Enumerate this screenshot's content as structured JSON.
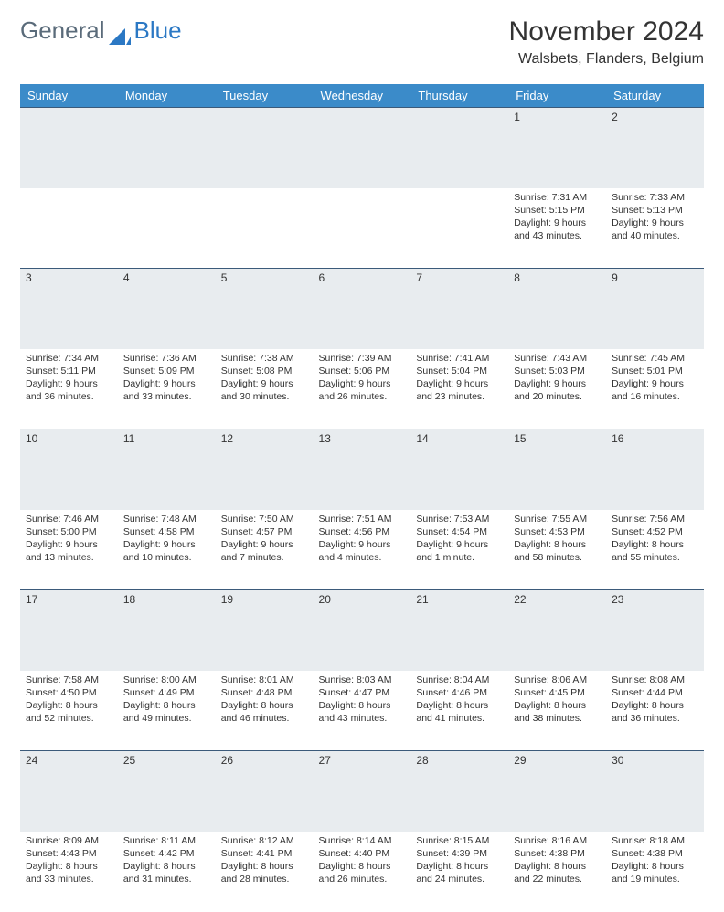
{
  "logo": {
    "text1": "General",
    "text2": "Blue"
  },
  "title": "November 2024",
  "location": "Walsbets, Flanders, Belgium",
  "colors": {
    "header_bg": "#3b8bc9",
    "header_text": "#ffffff",
    "daynum_bg": "#e8ecef",
    "border": "#3b5a7a",
    "logo_gray": "#5a6b7a",
    "logo_blue": "#2b78c4"
  },
  "weekdays": [
    "Sunday",
    "Monday",
    "Tuesday",
    "Wednesday",
    "Thursday",
    "Friday",
    "Saturday"
  ],
  "weeks": [
    [
      null,
      null,
      null,
      null,
      null,
      {
        "n": "1",
        "sr": "7:31 AM",
        "ss": "5:15 PM",
        "dl": "9 hours and 43 minutes."
      },
      {
        "n": "2",
        "sr": "7:33 AM",
        "ss": "5:13 PM",
        "dl": "9 hours and 40 minutes."
      }
    ],
    [
      {
        "n": "3",
        "sr": "7:34 AM",
        "ss": "5:11 PM",
        "dl": "9 hours and 36 minutes."
      },
      {
        "n": "4",
        "sr": "7:36 AM",
        "ss": "5:09 PM",
        "dl": "9 hours and 33 minutes."
      },
      {
        "n": "5",
        "sr": "7:38 AM",
        "ss": "5:08 PM",
        "dl": "9 hours and 30 minutes."
      },
      {
        "n": "6",
        "sr": "7:39 AM",
        "ss": "5:06 PM",
        "dl": "9 hours and 26 minutes."
      },
      {
        "n": "7",
        "sr": "7:41 AM",
        "ss": "5:04 PM",
        "dl": "9 hours and 23 minutes."
      },
      {
        "n": "8",
        "sr": "7:43 AM",
        "ss": "5:03 PM",
        "dl": "9 hours and 20 minutes."
      },
      {
        "n": "9",
        "sr": "7:45 AM",
        "ss": "5:01 PM",
        "dl": "9 hours and 16 minutes."
      }
    ],
    [
      {
        "n": "10",
        "sr": "7:46 AM",
        "ss": "5:00 PM",
        "dl": "9 hours and 13 minutes."
      },
      {
        "n": "11",
        "sr": "7:48 AM",
        "ss": "4:58 PM",
        "dl": "9 hours and 10 minutes."
      },
      {
        "n": "12",
        "sr": "7:50 AM",
        "ss": "4:57 PM",
        "dl": "9 hours and 7 minutes."
      },
      {
        "n": "13",
        "sr": "7:51 AM",
        "ss": "4:56 PM",
        "dl": "9 hours and 4 minutes."
      },
      {
        "n": "14",
        "sr": "7:53 AM",
        "ss": "4:54 PM",
        "dl": "9 hours and 1 minute."
      },
      {
        "n": "15",
        "sr": "7:55 AM",
        "ss": "4:53 PM",
        "dl": "8 hours and 58 minutes."
      },
      {
        "n": "16",
        "sr": "7:56 AM",
        "ss": "4:52 PM",
        "dl": "8 hours and 55 minutes."
      }
    ],
    [
      {
        "n": "17",
        "sr": "7:58 AM",
        "ss": "4:50 PM",
        "dl": "8 hours and 52 minutes."
      },
      {
        "n": "18",
        "sr": "8:00 AM",
        "ss": "4:49 PM",
        "dl": "8 hours and 49 minutes."
      },
      {
        "n": "19",
        "sr": "8:01 AM",
        "ss": "4:48 PM",
        "dl": "8 hours and 46 minutes."
      },
      {
        "n": "20",
        "sr": "8:03 AM",
        "ss": "4:47 PM",
        "dl": "8 hours and 43 minutes."
      },
      {
        "n": "21",
        "sr": "8:04 AM",
        "ss": "4:46 PM",
        "dl": "8 hours and 41 minutes."
      },
      {
        "n": "22",
        "sr": "8:06 AM",
        "ss": "4:45 PM",
        "dl": "8 hours and 38 minutes."
      },
      {
        "n": "23",
        "sr": "8:08 AM",
        "ss": "4:44 PM",
        "dl": "8 hours and 36 minutes."
      }
    ],
    [
      {
        "n": "24",
        "sr": "8:09 AM",
        "ss": "4:43 PM",
        "dl": "8 hours and 33 minutes."
      },
      {
        "n": "25",
        "sr": "8:11 AM",
        "ss": "4:42 PM",
        "dl": "8 hours and 31 minutes."
      },
      {
        "n": "26",
        "sr": "8:12 AM",
        "ss": "4:41 PM",
        "dl": "8 hours and 28 minutes."
      },
      {
        "n": "27",
        "sr": "8:14 AM",
        "ss": "4:40 PM",
        "dl": "8 hours and 26 minutes."
      },
      {
        "n": "28",
        "sr": "8:15 AM",
        "ss": "4:39 PM",
        "dl": "8 hours and 24 minutes."
      },
      {
        "n": "29",
        "sr": "8:16 AM",
        "ss": "4:38 PM",
        "dl": "8 hours and 22 minutes."
      },
      {
        "n": "30",
        "sr": "8:18 AM",
        "ss": "4:38 PM",
        "dl": "8 hours and 19 minutes."
      }
    ]
  ],
  "labels": {
    "sunrise": "Sunrise: ",
    "sunset": "Sunset: ",
    "daylight": "Daylight: "
  }
}
